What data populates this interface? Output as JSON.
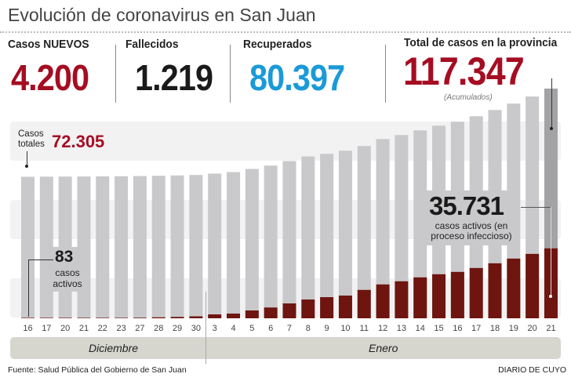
{
  "header": {
    "title": "Evolución de coronavirus en San Juan"
  },
  "stats": [
    {
      "label": "Casos NUEVOS",
      "value": "4.200",
      "color": "#a50d22"
    },
    {
      "label": "Fallecidos",
      "value": "1.219",
      "color": "#1a1a1a"
    },
    {
      "label": "Recuperados",
      "value": "80.397",
      "color": "#1a9ad8"
    },
    {
      "label": "Total de casos en la provincia",
      "value": "117.347",
      "color": "#a50d22",
      "note": "(Acumulados)"
    }
  ],
  "annotations": {
    "total_label": "Casos totales",
    "total_label_line1": "Casos",
    "total_label_line2": "totales",
    "total_value": "72.305",
    "active_start_value": "83",
    "active_start_line1": "casos",
    "active_start_line2": "activos",
    "active_end_value": "35.731",
    "active_end_line1": "casos activos (en",
    "active_end_line2": "proceso infeccioso)"
  },
  "months": [
    "Diciembre",
    "Enero"
  ],
  "footer": {
    "source": "Fuente: Salud Pública del Gobierno de San Juan",
    "brand": "DIARIO DE CUYO"
  },
  "chart_data": {
    "type": "bar",
    "stacked_overlay": true,
    "categories": [
      "16",
      "17",
      "20",
      "21",
      "22",
      "23",
      "27",
      "28",
      "29",
      "30",
      "3",
      "4",
      "5",
      "6",
      "7",
      "8",
      "9",
      "10",
      "11",
      "12",
      "13",
      "14",
      "15",
      "16",
      "17",
      "18",
      "19",
      "20",
      "21"
    ],
    "month_groups": [
      {
        "name": "Diciembre",
        "count": 10
      },
      {
        "name": "Enero",
        "count": 19
      }
    ],
    "series": [
      {
        "name": "Casos totales",
        "color": "#c9c9cb",
        "highlight_color": "#a3a3a5",
        "values": [
          72305,
          72350,
          72400,
          72450,
          72500,
          72550,
          72650,
          72800,
          73000,
          73200,
          73900,
          74700,
          76300,
          78000,
          80300,
          82700,
          84000,
          85600,
          88000,
          91600,
          93600,
          96000,
          98400,
          100400,
          103200,
          106400,
          109700,
          113300,
          117347
        ]
      },
      {
        "name": "casos activos",
        "color": "#6e1510",
        "values": [
          83,
          90,
          100,
          120,
          150,
          200,
          300,
          500,
          700,
          1000,
          2000,
          2400,
          4000,
          5500,
          7600,
          9600,
          10800,
          11600,
          14500,
          17300,
          18900,
          20900,
          22500,
          23700,
          25700,
          28100,
          30500,
          32900,
          35731
        ]
      }
    ],
    "ylim": [
      0,
      120000
    ],
    "grid": false
  }
}
